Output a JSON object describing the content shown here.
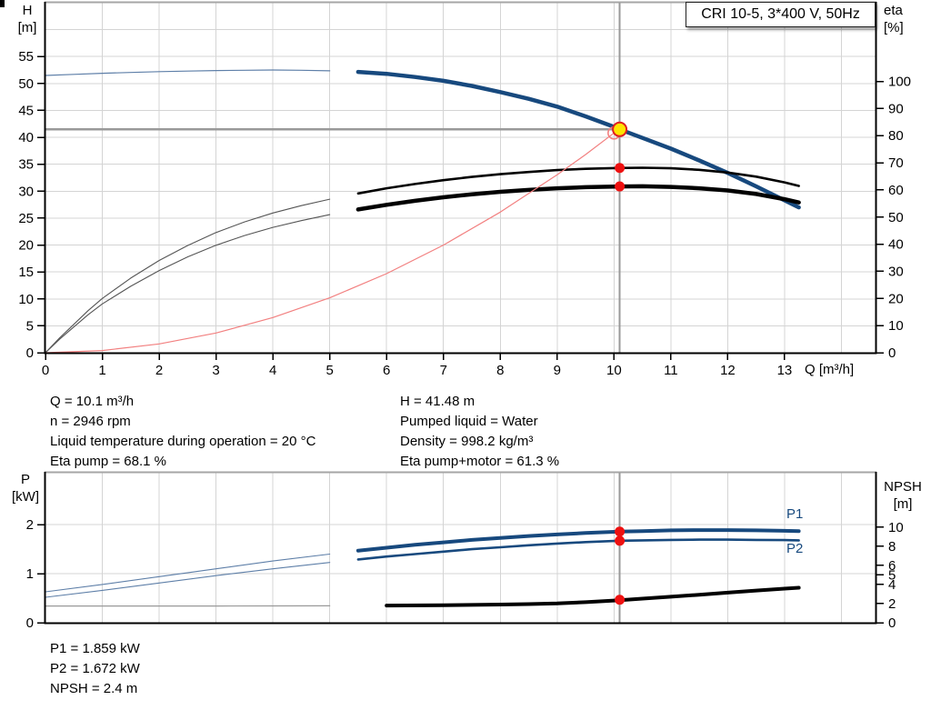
{
  "title_box": {
    "label": "CRI 10-5, 3*400 V, 50Hz"
  },
  "axis_labels": {
    "h_unit_line1": "H",
    "h_unit_line2": "[m]",
    "eta_unit_line1": "eta",
    "eta_unit_line2": "[%]",
    "x_unit": "Q [m³/h]",
    "p_unit_line1": "P",
    "p_unit_line2": "[kW]",
    "npsh_unit_line1": "NPSH",
    "npsh_unit_line2": "[m]"
  },
  "curve_labels": {
    "p1": "P1",
    "p2": "P2"
  },
  "info_top_left": [
    "Q = 10.1 m³/h",
    "n = 2946 rpm",
    "Liquid temperature during operation = 20 °C",
    "Eta pump = 68.1 %"
  ],
  "info_top_right": [
    "H = 41.48 m",
    "Pumped liquid = Water",
    "Density = 998.2 kg/m³",
    "Eta pump+motor = 61.3 %"
  ],
  "info_bottom": [
    "P1 = 1.859 kW",
    "P2 = 1.672 kW",
    "NPSH = 2.4 m"
  ],
  "colors": {
    "curve_blue": "#17497E",
    "thin_blue": "#5E7FA8",
    "curve_black": "#000000",
    "thin_dark": "#555555",
    "npsh_thin": "#999999",
    "system_red": "#F28080",
    "marker_red": "#EE1111",
    "duty_yellow": "#FFE400",
    "duty_stroke": "#E02020",
    "guide_gray": "#999999",
    "grid": "#D4D4D4",
    "frame_top": "#A6A6A6",
    "axis": "#000000",
    "label_blue": "#17497E"
  },
  "chart_data": [
    {
      "type": "line",
      "title": "CRI 10-5, 3*400 V, 50Hz",
      "xlabel": "Q [m³/h]",
      "ylabel_left": "H [m]",
      "ylabel_right": "eta [%]",
      "xlim": [
        0,
        14.6
      ],
      "ylim_left": [
        0,
        65
      ],
      "ylim_right": [
        0,
        129
      ],
      "x_ticks": [
        0,
        1,
        2,
        3,
        4,
        5,
        6,
        7,
        8,
        9,
        10,
        11,
        12,
        13
      ],
      "y_ticks_left": [
        0,
        5,
        10,
        15,
        20,
        25,
        30,
        35,
        40,
        45,
        50,
        55
      ],
      "y_ticks_right": [
        0,
        10,
        20,
        30,
        40,
        50,
        60,
        70,
        80,
        90,
        100
      ],
      "x_gridlines": [
        1,
        2,
        3,
        4,
        5,
        6,
        7,
        8,
        9,
        10,
        11,
        12,
        13,
        14
      ],
      "y_gridlines_left": [
        5,
        10,
        15,
        20,
        25,
        30,
        35,
        40,
        45,
        50,
        55,
        60
      ],
      "grid": true,
      "legend_position": "none",
      "duty_point": {
        "Q": 10.1,
        "H": 41.48,
        "eta_pump": 68.1,
        "eta_pump_motor": 61.3
      },
      "guide": {
        "q": 10.1,
        "h": 41.48
      },
      "series": [
        {
          "name": "QH pump curve",
          "axis": "left",
          "color": "curve_blue",
          "thin_color": "thin_blue",
          "split_q": 5.1,
          "w_thin": 1.2,
          "w_thick": 4.5,
          "points": [
            [
              0,
              51.5
            ],
            [
              0.5,
              51.7
            ],
            [
              1,
              51.9
            ],
            [
              1.5,
              52.05
            ],
            [
              2,
              52.2
            ],
            [
              2.5,
              52.3
            ],
            [
              3,
              52.4
            ],
            [
              3.5,
              52.45
            ],
            [
              4,
              52.5
            ],
            [
              4.5,
              52.45
            ],
            [
              5,
              52.35
            ],
            [
              5.5,
              52.15
            ],
            [
              6,
              51.8
            ],
            [
              6.5,
              51.2
            ],
            [
              7,
              50.5
            ],
            [
              7.5,
              49.55
            ],
            [
              8,
              48.4
            ],
            [
              8.5,
              47.15
            ],
            [
              9,
              45.7
            ],
            [
              9.5,
              43.9
            ],
            [
              10,
              41.95
            ],
            [
              10.1,
              41.48
            ],
            [
              10.5,
              39.9
            ],
            [
              11,
              37.9
            ],
            [
              11.5,
              35.7
            ],
            [
              12,
              33.4
            ],
            [
              12.5,
              30.9
            ],
            [
              13,
              28.3
            ],
            [
              13.25,
              27.0
            ]
          ]
        },
        {
          "name": "eta pump",
          "axis": "right",
          "color": "curve_black",
          "thin_color": "thin_dark",
          "split_q": 5.1,
          "w_thin": 1.1,
          "w_thick": 2.6,
          "points": [
            [
              0,
              0
            ],
            [
              0.25,
              5.5
            ],
            [
              0.5,
              10.5
            ],
            [
              0.75,
              15.5
            ],
            [
              1,
              20
            ],
            [
              1.5,
              27.5
            ],
            [
              2,
              34
            ],
            [
              2.5,
              39.5
            ],
            [
              3,
              44.3
            ],
            [
              3.5,
              48.2
            ],
            [
              4,
              51.5
            ],
            [
              4.5,
              54.2
            ],
            [
              5,
              56.6
            ],
            [
              5.5,
              58.7
            ],
            [
              6,
              60.6
            ],
            [
              6.5,
              62.2
            ],
            [
              7,
              63.6
            ],
            [
              7.5,
              64.8
            ],
            [
              8,
              65.8
            ],
            [
              8.5,
              66.6
            ],
            [
              9,
              67.3
            ],
            [
              9.5,
              67.8
            ],
            [
              10,
              68.05
            ],
            [
              10.1,
              68.1
            ],
            [
              10.5,
              68.2
            ],
            [
              11,
              68.0
            ],
            [
              11.5,
              67.4
            ],
            [
              12,
              66.4
            ],
            [
              12.5,
              64.9
            ],
            [
              13,
              62.8
            ],
            [
              13.25,
              61.5
            ]
          ]
        },
        {
          "name": "eta pump+motor",
          "axis": "right",
          "color": "curve_black",
          "thin_color": "thin_dark",
          "split_q": 5.1,
          "w_thin": 1.1,
          "w_thick": 4.5,
          "points": [
            [
              0,
              0
            ],
            [
              0.25,
              5
            ],
            [
              0.5,
              9.5
            ],
            [
              0.75,
              14
            ],
            [
              1,
              18
            ],
            [
              1.5,
              24.5
            ],
            [
              2,
              30.3
            ],
            [
              2.5,
              35.3
            ],
            [
              3,
              39.6
            ],
            [
              3.5,
              43.2
            ],
            [
              4,
              46.2
            ],
            [
              4.5,
              48.7
            ],
            [
              5,
              50.9
            ],
            [
              5.5,
              52.8
            ],
            [
              6,
              54.5
            ],
            [
              6.5,
              56.0
            ],
            [
              7,
              57.3
            ],
            [
              7.5,
              58.4
            ],
            [
              8,
              59.3
            ],
            [
              8.5,
              60.0
            ],
            [
              9,
              60.6
            ],
            [
              9.5,
              61.0
            ],
            [
              10,
              61.25
            ],
            [
              10.1,
              61.3
            ],
            [
              10.5,
              61.35
            ],
            [
              11,
              61.1
            ],
            [
              11.5,
              60.6
            ],
            [
              12,
              59.8
            ],
            [
              12.5,
              58.5
            ],
            [
              13,
              56.6
            ],
            [
              13.25,
              55.4
            ]
          ]
        },
        {
          "name": "system curve",
          "axis": "left",
          "color": "system_red",
          "thin_color": "system_red",
          "split_q": null,
          "w_thin": 1.2,
          "w_thick": 1.2,
          "points": [
            [
              0,
              0
            ],
            [
              1,
              0.41
            ],
            [
              2,
              1.63
            ],
            [
              3,
              3.67
            ],
            [
              4,
              6.53
            ],
            [
              5,
              10.2
            ],
            [
              6,
              14.69
            ],
            [
              7,
              19.99
            ],
            [
              8,
              26.11
            ],
            [
              9,
              33.05
            ],
            [
              9.5,
              36.8
            ],
            [
              10,
              40.8
            ]
          ]
        }
      ],
      "markers": [
        {
          "style": "ring",
          "q": 10.0,
          "v": 40.8,
          "axis": "left",
          "r": 6.5
        },
        {
          "style": "duty",
          "q": 10.1,
          "v": 41.48,
          "axis": "left",
          "r": 7.5
        },
        {
          "style": "dot",
          "q": 10.1,
          "v": 68.1,
          "axis": "right",
          "r": 5.5
        },
        {
          "style": "dot",
          "q": 10.1,
          "v": 61.3,
          "axis": "right",
          "r": 5.5
        }
      ]
    },
    {
      "type": "line",
      "title": "Power and NPSH curves",
      "xlabel": "Q [m³/h]",
      "ylabel_left": "P [kW]",
      "ylabel_right": "NPSH [m]",
      "xlim": [
        0,
        14.6
      ],
      "ylim_left": [
        0,
        3.06
      ],
      "ylim_right": [
        0,
        15.71
      ],
      "x_ticks": [],
      "y_ticks_left": [
        0,
        1,
        2
      ],
      "y_ticks_right": [
        0,
        2,
        4,
        5,
        6,
        8,
        10
      ],
      "x_gridlines": [
        1,
        2,
        3,
        4,
        5,
        6,
        7,
        8,
        9,
        10,
        11,
        12,
        13,
        14
      ],
      "y_gridlines_left": [
        1,
        2
      ],
      "grid": true,
      "legend_position": "inline-labels P1 P2",
      "duty_point": {
        "Q": 10.1,
        "P1": 1.859,
        "P2": 1.672,
        "NPSH": 2.4
      },
      "guide": {
        "q": 10.1
      },
      "series": [
        {
          "name": "P1",
          "axis": "left",
          "color": "curve_blue",
          "thin_color": "thin_blue",
          "split_q": 5.1,
          "w_thin": 1.1,
          "w_thick": 4.0,
          "points": [
            [
              0,
              0.63
            ],
            [
              1,
              0.78
            ],
            [
              2,
              0.94
            ],
            [
              3,
              1.1
            ],
            [
              4,
              1.26
            ],
            [
              5,
              1.4
            ],
            [
              5.5,
              1.47
            ],
            [
              6,
              1.53
            ],
            [
              6.5,
              1.59
            ],
            [
              7,
              1.64
            ],
            [
              7.5,
              1.69
            ],
            [
              8,
              1.73
            ],
            [
              8.5,
              1.77
            ],
            [
              9,
              1.8
            ],
            [
              9.5,
              1.83
            ],
            [
              10,
              1.855
            ],
            [
              10.1,
              1.859
            ],
            [
              10.5,
              1.87
            ],
            [
              11,
              1.885
            ],
            [
              11.5,
              1.89
            ],
            [
              12,
              1.89
            ],
            [
              12.5,
              1.885
            ],
            [
              13,
              1.875
            ],
            [
              13.25,
              1.87
            ]
          ]
        },
        {
          "name": "P2",
          "axis": "left",
          "color": "curve_blue",
          "thin_color": "thin_blue",
          "split_q": 5.1,
          "w_thin": 1.1,
          "w_thick": 2.6,
          "points": [
            [
              0,
              0.52
            ],
            [
              1,
              0.66
            ],
            [
              2,
              0.81
            ],
            [
              3,
              0.96
            ],
            [
              4,
              1.1
            ],
            [
              5,
              1.23
            ],
            [
              5.5,
              1.29
            ],
            [
              6,
              1.35
            ],
            [
              6.5,
              1.4
            ],
            [
              7,
              1.45
            ],
            [
              7.5,
              1.5
            ],
            [
              8,
              1.54
            ],
            [
              8.5,
              1.58
            ],
            [
              9,
              1.615
            ],
            [
              9.5,
              1.645
            ],
            [
              10,
              1.668
            ],
            [
              10.1,
              1.672
            ],
            [
              10.5,
              1.68
            ],
            [
              11,
              1.69
            ],
            [
              11.5,
              1.695
            ],
            [
              12,
              1.695
            ],
            [
              12.5,
              1.69
            ],
            [
              13,
              1.685
            ],
            [
              13.25,
              1.68
            ]
          ]
        },
        {
          "name": "NPSH",
          "axis": "right",
          "color": "curve_black",
          "thin_color": "npsh_thin",
          "split_q": 5.1,
          "w_thin": 1.2,
          "w_thick": 4.0,
          "points": [
            [
              0,
              1.75
            ],
            [
              1,
              1.75
            ],
            [
              2,
              1.75
            ],
            [
              3,
              1.75
            ],
            [
              4,
              1.76
            ],
            [
              5,
              1.77
            ],
            [
              6,
              1.8
            ],
            [
              7,
              1.84
            ],
            [
              8,
              1.9
            ],
            [
              8.5,
              1.95
            ],
            [
              9,
              2.02
            ],
            [
              9.5,
              2.15
            ],
            [
              10,
              2.32
            ],
            [
              10.1,
              2.36
            ],
            [
              10.5,
              2.52
            ],
            [
              11,
              2.72
            ],
            [
              11.5,
              2.93
            ],
            [
              12,
              3.15
            ],
            [
              12.5,
              3.37
            ],
            [
              13,
              3.57
            ],
            [
              13.25,
              3.67
            ]
          ]
        }
      ],
      "markers": [
        {
          "style": "dot",
          "q": 10.1,
          "v": 1.859,
          "axis": "left",
          "r": 5.5
        },
        {
          "style": "dot",
          "q": 10.1,
          "v": 1.672,
          "axis": "left",
          "r": 5.5
        },
        {
          "style": "dot",
          "q": 10.1,
          "v": 2.4,
          "axis": "right",
          "r": 5.5
        }
      ]
    }
  ]
}
